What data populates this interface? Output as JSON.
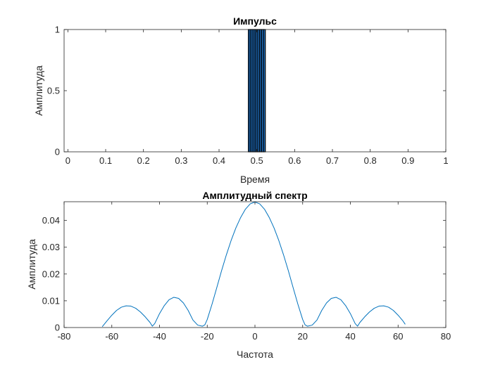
{
  "chart_data": [
    {
      "type": "bar",
      "title": "Импульс",
      "xlabel": "Время",
      "ylabel": "Амплитуда",
      "xlim": [
        -0.01,
        1.0
      ],
      "ylim": [
        0,
        1
      ],
      "xticks": [
        0,
        0.1,
        0.2,
        0.3,
        0.4,
        0.5,
        0.6,
        0.7,
        0.8,
        0.9,
        1
      ],
      "xtick_labels": [
        "0",
        "0.1",
        "0.2",
        "0.3",
        "0.4",
        "0.5",
        "0.6",
        "0.7",
        "0.8",
        "0.9",
        "1"
      ],
      "yticks": [
        0,
        0.5,
        1
      ],
      "ytick_labels": [
        "0",
        "0.5",
        "1"
      ],
      "bar_color": "#1f6fbf",
      "edge_color": "#000000",
      "bar_width": 0.005,
      "x": [
        0.48,
        0.485,
        0.49,
        0.495,
        0.5,
        0.505,
        0.51,
        0.515,
        0.52
      ],
      "values": [
        1,
        1,
        1,
        1,
        1,
        1,
        1,
        1,
        1
      ]
    },
    {
      "type": "line",
      "title": "Амплитудный спектр",
      "xlabel": "Частота",
      "ylabel": "Амплитуда",
      "xlim": [
        -80,
        80
      ],
      "ylim": [
        0,
        0.047
      ],
      "xticks": [
        -80,
        -60,
        -40,
        -20,
        0,
        20,
        40,
        60,
        80
      ],
      "xtick_labels": [
        "-80",
        "-60",
        "-40",
        "-20",
        "0",
        "20",
        "40",
        "60",
        "80"
      ],
      "yticks": [
        0,
        0.01,
        0.02,
        0.03,
        0.04
      ],
      "ytick_labels": [
        "0",
        "0.01",
        "0.02",
        "0.03",
        "0.04"
      ],
      "line_color": "#0072bd",
      "x": [
        -64,
        -62,
        -60,
        -58,
        -56,
        -54,
        -52,
        -50,
        -48,
        -46,
        -44,
        -43,
        -42,
        -40,
        -38,
        -36,
        -34,
        -32,
        -30,
        -28,
        -26,
        -24,
        -22,
        -21,
        -20,
        -18,
        -16,
        -14,
        -12,
        -10,
        -8,
        -6,
        -4,
        -2,
        0,
        2,
        4,
        6,
        8,
        10,
        12,
        14,
        16,
        18,
        20,
        21,
        22,
        24,
        26,
        28,
        30,
        32,
        34,
        36,
        38,
        40,
        42,
        43,
        44,
        46,
        48,
        50,
        52,
        54,
        56,
        58,
        60,
        62,
        63
      ],
      "y": [
        0.0003,
        0.0025,
        0.0046,
        0.0064,
        0.0076,
        0.0081,
        0.008,
        0.0072,
        0.0058,
        0.004,
        0.0019,
        0.0005,
        0.0015,
        0.0052,
        0.0082,
        0.0104,
        0.0113,
        0.0109,
        0.0092,
        0.0064,
        0.0028,
        0.0009,
        0.0005,
        0.001,
        0.003,
        0.0087,
        0.0149,
        0.0212,
        0.0271,
        0.0325,
        0.0372,
        0.0411,
        0.0442,
        0.0462,
        0.0469,
        0.0462,
        0.0442,
        0.0411,
        0.0372,
        0.0325,
        0.0271,
        0.0212,
        0.0149,
        0.0087,
        0.003,
        0.001,
        0.0005,
        0.0009,
        0.0028,
        0.0064,
        0.0092,
        0.0109,
        0.0113,
        0.0104,
        0.0082,
        0.0052,
        0.0015,
        0.0005,
        0.0019,
        0.004,
        0.0058,
        0.0072,
        0.008,
        0.0081,
        0.0076,
        0.0064,
        0.0046,
        0.0025,
        0.0012
      ]
    }
  ]
}
